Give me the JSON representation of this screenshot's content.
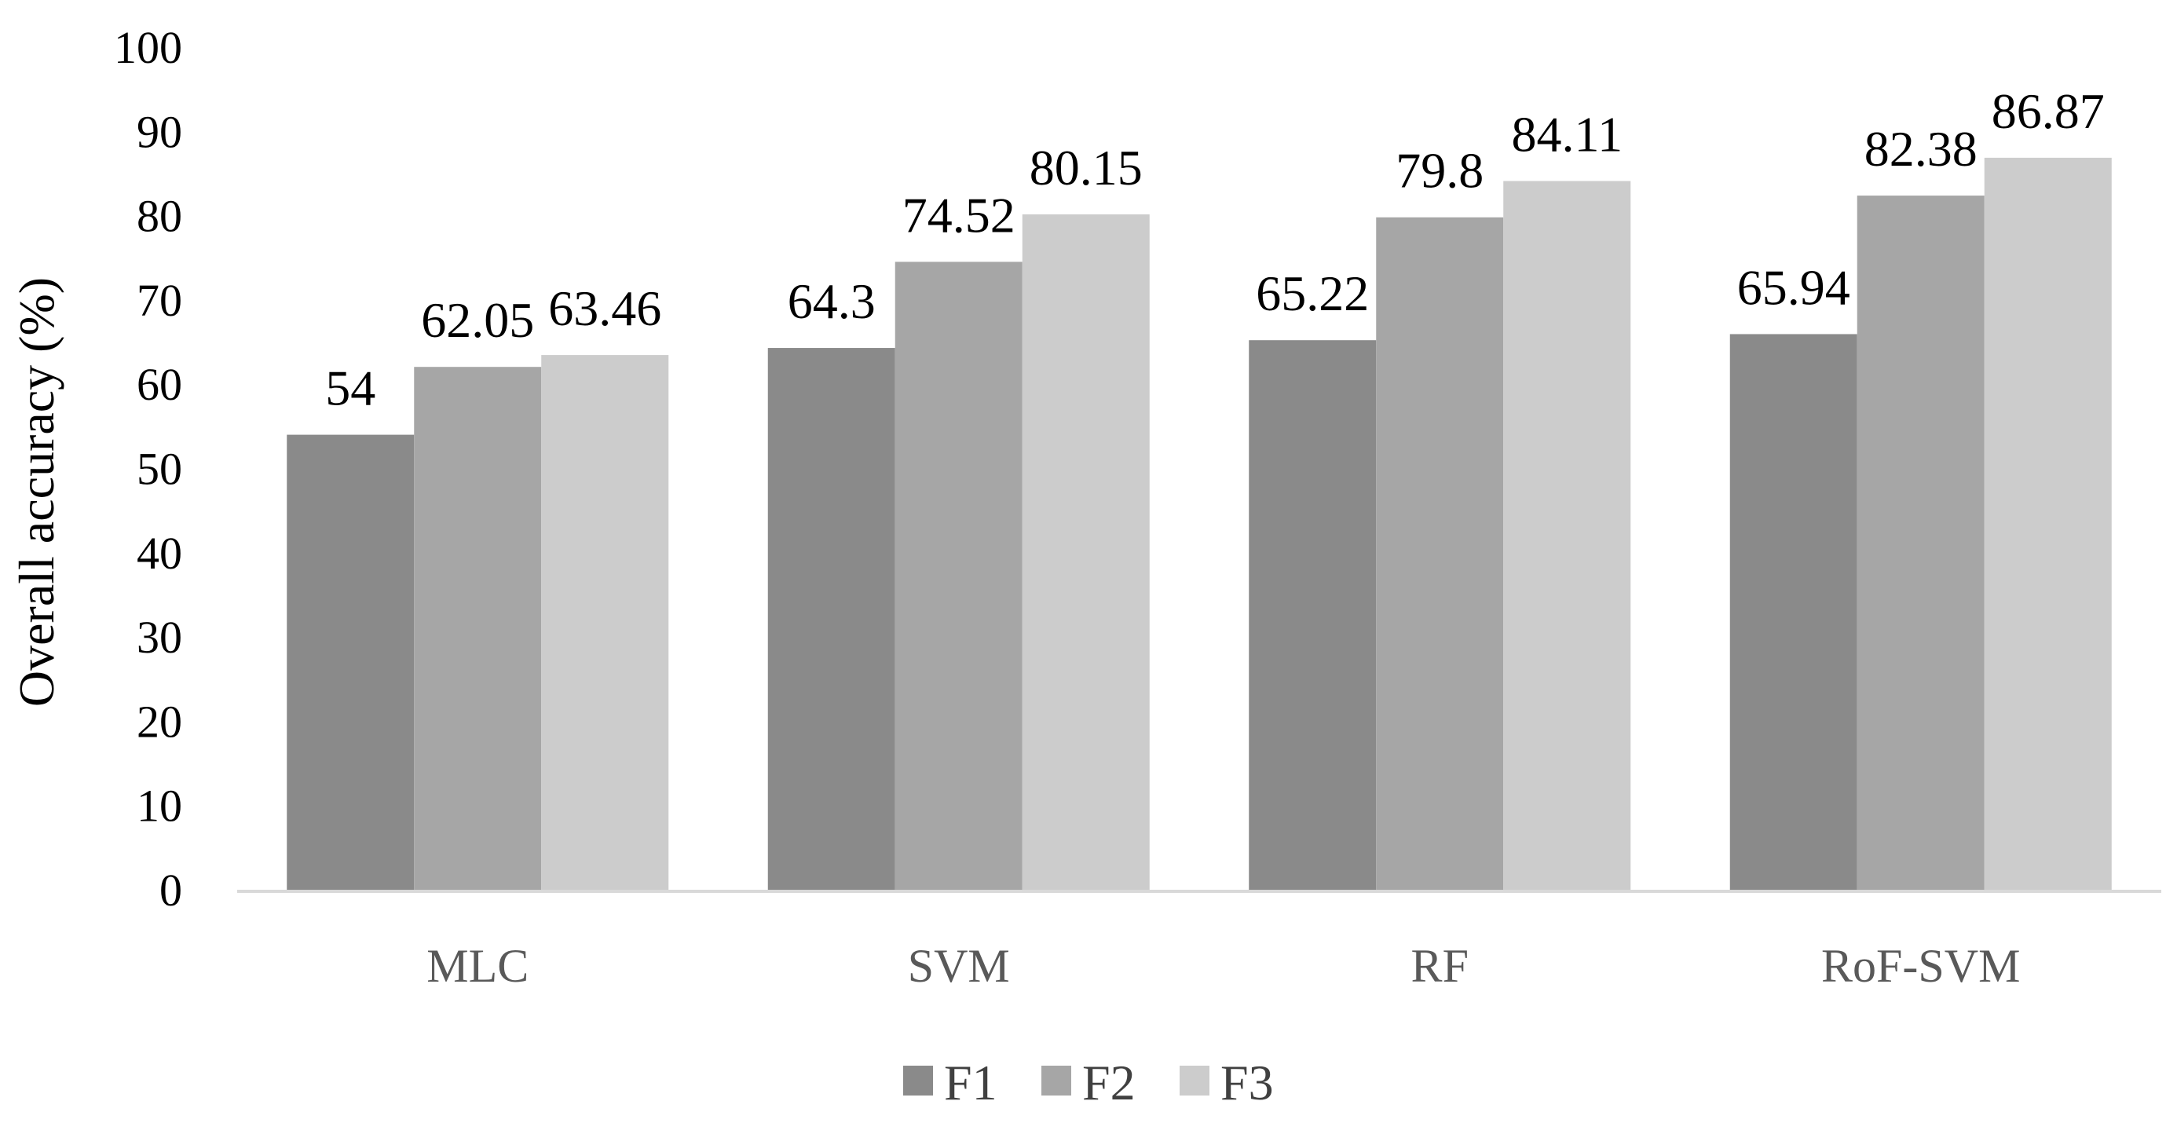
{
  "chart_data": {
    "type": "bar",
    "categories": [
      "MLC",
      "SVM",
      "RF",
      "RoF-SVM"
    ],
    "series": [
      {
        "name": "F1",
        "values": [
          54,
          64.3,
          65.22,
          65.94
        ],
        "labels": [
          "54",
          "64.3",
          "65.22",
          "65.94"
        ],
        "color": "#8a8a8a"
      },
      {
        "name": "F2",
        "values": [
          62.05,
          74.52,
          79.8,
          82.38
        ],
        "labels": [
          "62.05",
          "74.52",
          "79.8",
          "82.38"
        ],
        "color": "#a6a6a6"
      },
      {
        "name": "F3",
        "values": [
          63.46,
          80.15,
          84.11,
          86.87
        ],
        "labels": [
          "63.46",
          "80.15",
          "84.11",
          "86.87"
        ],
        "color": "#cccccc"
      }
    ],
    "title": "",
    "xlabel": "",
    "ylabel": "Overall accuracy (%)",
    "ylim": [
      0,
      100
    ],
    "yticks": [
      "0",
      "10",
      "20",
      "30",
      "40",
      "50",
      "60",
      "70",
      "80",
      "90",
      "100"
    ],
    "grid": false,
    "legend_position": "bottom",
    "axis_color": "#d9d9d9"
  }
}
